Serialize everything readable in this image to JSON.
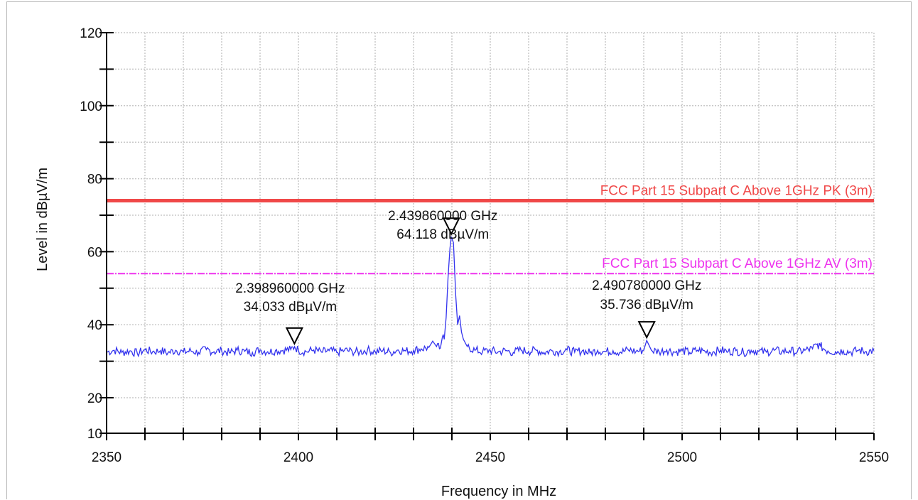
{
  "chart_data": {
    "type": "line",
    "xlabel": "Frequency in MHz",
    "ylabel": "Level in dBµV/m",
    "xlim": [
      2350,
      2550
    ],
    "ylim": [
      10,
      120
    ],
    "x_ticks": [
      2350,
      2400,
      2450,
      2500,
      2550
    ],
    "y_ticks": [
      10,
      20,
      40,
      60,
      80,
      100,
      120
    ],
    "grid": true,
    "limit_lines": [
      {
        "label": "FCC Part 15 Subpart C Above 1GHz    PK (3m)",
        "value": 74,
        "color": "#f04848",
        "style": "solid"
      },
      {
        "label": "FCC Part 15 Subpart C Above 1GHz    AV (3m)",
        "value": 54,
        "color": "#ee33ee",
        "style": "dashdot"
      }
    ],
    "series": [
      {
        "color": "#3333ee",
        "points": [
          [
            2350,
            32.5
          ],
          [
            2352,
            33.0
          ],
          [
            2354,
            32.4
          ],
          [
            2356,
            32.8
          ],
          [
            2358,
            32.2
          ],
          [
            2360,
            33.1
          ],
          [
            2362,
            32.6
          ],
          [
            2364,
            32.9
          ],
          [
            2366,
            32.3
          ],
          [
            2368,
            33.0
          ],
          [
            2370,
            32.5
          ],
          [
            2372,
            32.8
          ],
          [
            2374,
            32.4
          ],
          [
            2376,
            33.2
          ],
          [
            2378,
            32.6
          ],
          [
            2380,
            32.9
          ],
          [
            2382,
            32.3
          ],
          [
            2384,
            33.0
          ],
          [
            2386,
            32.7
          ],
          [
            2388,
            32.4
          ],
          [
            2390,
            33.1
          ],
          [
            2392,
            32.6
          ],
          [
            2394,
            32.9
          ],
          [
            2396,
            33.0
          ],
          [
            2398,
            33.2
          ],
          [
            2399,
            34.0
          ],
          [
            2400,
            33.0
          ],
          [
            2402,
            32.6
          ],
          [
            2404,
            33.1
          ],
          [
            2406,
            32.5
          ],
          [
            2408,
            32.9
          ],
          [
            2410,
            32.4
          ],
          [
            2412,
            33.0
          ],
          [
            2414,
            32.7
          ],
          [
            2416,
            32.5
          ],
          [
            2418,
            33.1
          ],
          [
            2420,
            32.6
          ],
          [
            2422,
            32.9
          ],
          [
            2424,
            32.4
          ],
          [
            2426,
            33.1
          ],
          [
            2428,
            32.8
          ],
          [
            2430,
            33.0
          ],
          [
            2432,
            33.4
          ],
          [
            2434,
            33.8
          ],
          [
            2435,
            35.5
          ],
          [
            2436,
            34.0
          ],
          [
            2437,
            33.6
          ],
          [
            2437.5,
            36.5
          ],
          [
            2438,
            36.0
          ],
          [
            2438.5,
            42.0
          ],
          [
            2439,
            53.0
          ],
          [
            2439.5,
            61.0
          ],
          [
            2439.86,
            64.1
          ],
          [
            2440.4,
            62.5
          ],
          [
            2441,
            48.0
          ],
          [
            2441.5,
            40.0
          ],
          [
            2442,
            42.5
          ],
          [
            2442.5,
            38.0
          ],
          [
            2443,
            36.0
          ],
          [
            2444,
            34.0
          ],
          [
            2446,
            33.0
          ],
          [
            2448,
            32.6
          ],
          [
            2450,
            33.0
          ],
          [
            2452,
            32.5
          ],
          [
            2454,
            32.9
          ],
          [
            2456,
            32.4
          ],
          [
            2458,
            33.1
          ],
          [
            2460,
            32.7
          ],
          [
            2462,
            33.0
          ],
          [
            2464,
            32.4
          ],
          [
            2466,
            32.9
          ],
          [
            2468,
            32.6
          ],
          [
            2470,
            33.1
          ],
          [
            2472,
            32.5
          ],
          [
            2474,
            32.9
          ],
          [
            2476,
            32.3
          ],
          [
            2478,
            33.0
          ],
          [
            2480,
            32.6
          ],
          [
            2482,
            32.9
          ],
          [
            2484,
            32.5
          ],
          [
            2486,
            33.1
          ],
          [
            2488,
            32.7
          ],
          [
            2490,
            33.0
          ],
          [
            2490.78,
            35.7
          ],
          [
            2492,
            33.0
          ],
          [
            2494,
            32.6
          ],
          [
            2496,
            33.1
          ],
          [
            2498,
            32.5
          ],
          [
            2500,
            32.9
          ],
          [
            2502,
            32.4
          ],
          [
            2504,
            33.0
          ],
          [
            2506,
            32.7
          ],
          [
            2508,
            32.5
          ],
          [
            2510,
            33.1
          ],
          [
            2512,
            32.6
          ],
          [
            2514,
            32.9
          ],
          [
            2516,
            32.4
          ],
          [
            2518,
            33.0
          ],
          [
            2520,
            32.7
          ],
          [
            2522,
            32.5
          ],
          [
            2524,
            33.0
          ],
          [
            2526,
            32.6
          ],
          [
            2528,
            32.9
          ],
          [
            2530,
            32.5
          ],
          [
            2532,
            33.0
          ],
          [
            2534,
            33.4
          ],
          [
            2535,
            34.6
          ],
          [
            2536,
            34.2
          ],
          [
            2537,
            33.3
          ],
          [
            2538,
            32.8
          ],
          [
            2540,
            32.6
          ],
          [
            2542,
            32.9
          ],
          [
            2544,
            32.5
          ],
          [
            2546,
            33.0
          ],
          [
            2548,
            32.6
          ],
          [
            2550,
            32.9
          ]
        ]
      }
    ],
    "markers": [
      {
        "x": 2398.96,
        "y": 34.033,
        "freq_label": "2.398960000 GHz",
        "level_label": "34.033 dBµV/m"
      },
      {
        "x": 2439.86,
        "y": 64.118,
        "freq_label": "2.439860000 GHz",
        "level_label": "64.118 dBµV/m"
      },
      {
        "x": 2490.78,
        "y": 35.736,
        "freq_label": "2.490780000 GHz",
        "level_label": "35.736 dBµV/m"
      }
    ]
  }
}
